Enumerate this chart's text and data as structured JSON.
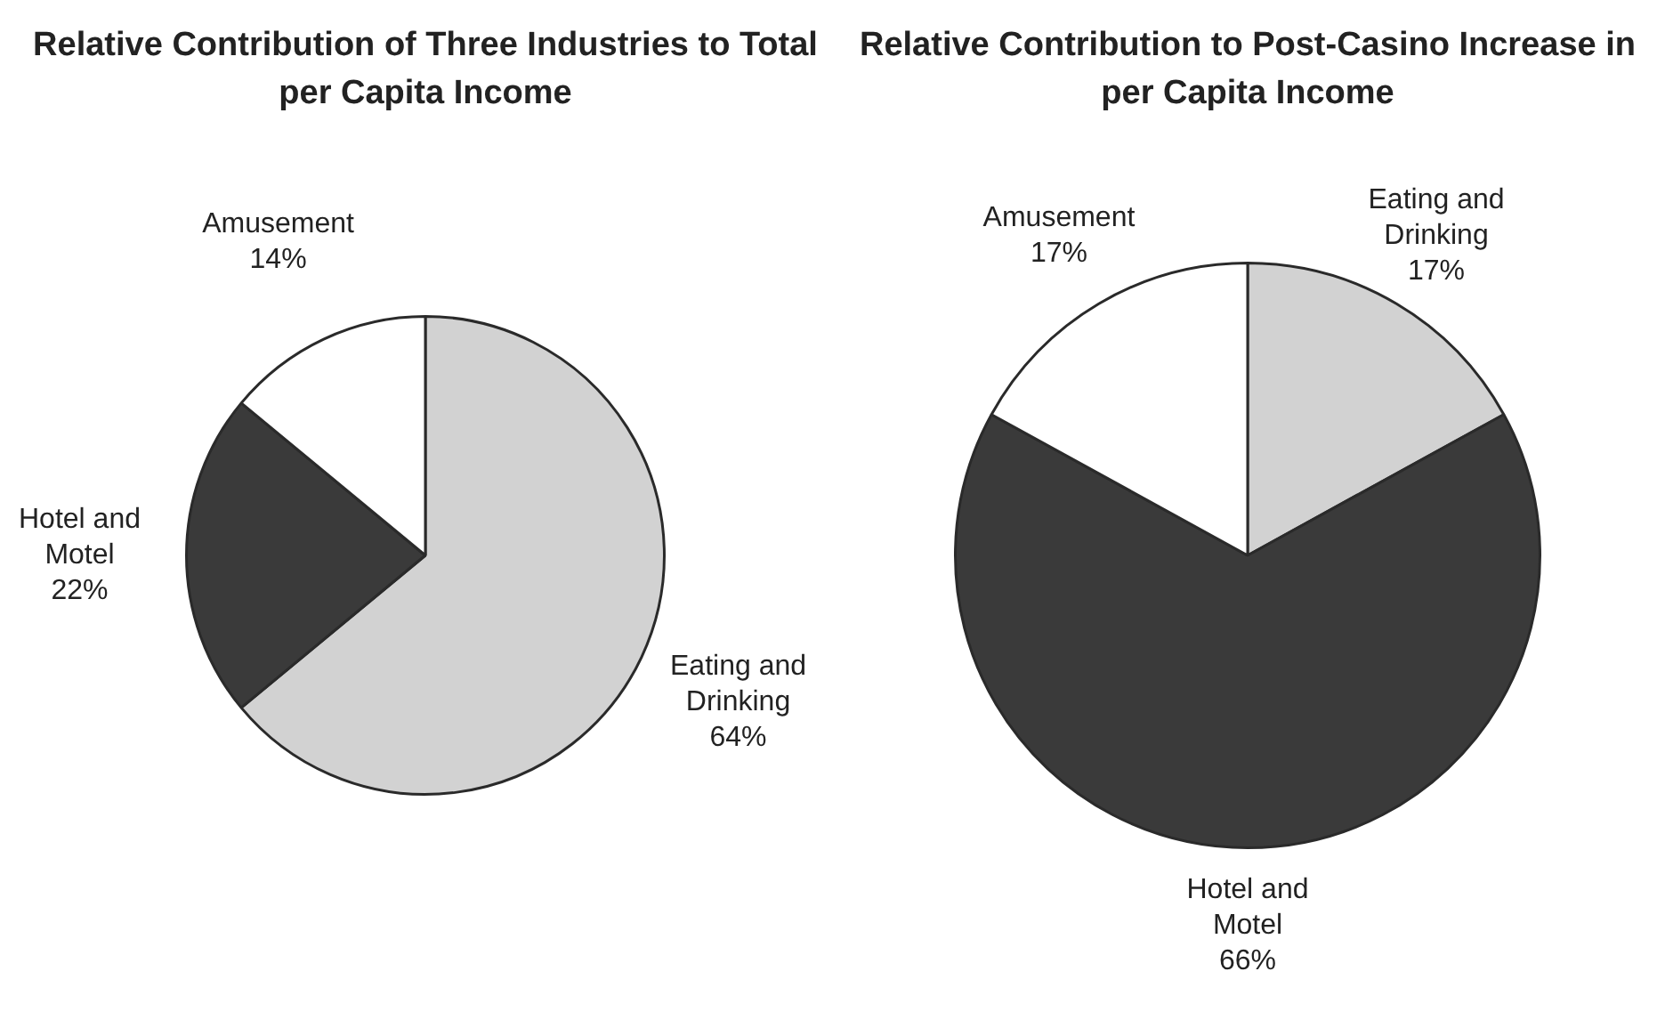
{
  "chart_data": [
    {
      "type": "pie",
      "title": "Relative Contribution of Three Industries to Total per Capita Income",
      "categories": [
        "Eating and Drinking",
        "Hotel and Motel",
        "Amusement"
      ],
      "values": [
        64,
        22,
        14
      ],
      "colors": [
        "#d2d2d2",
        "#3a3a3a",
        "#ffffff"
      ],
      "value_labels": [
        "64%",
        "22%",
        "14%"
      ]
    },
    {
      "type": "pie",
      "title": "Relative Contribution to Post-Casino Increase in per Capita Income",
      "categories": [
        "Eating and Drinking",
        "Hotel and Motel",
        "Amusement"
      ],
      "values": [
        17,
        66,
        17
      ],
      "colors": [
        "#d2d2d2",
        "#3a3a3a",
        "#ffffff"
      ],
      "value_labels": [
        "17%",
        "66%",
        "17%"
      ]
    }
  ]
}
